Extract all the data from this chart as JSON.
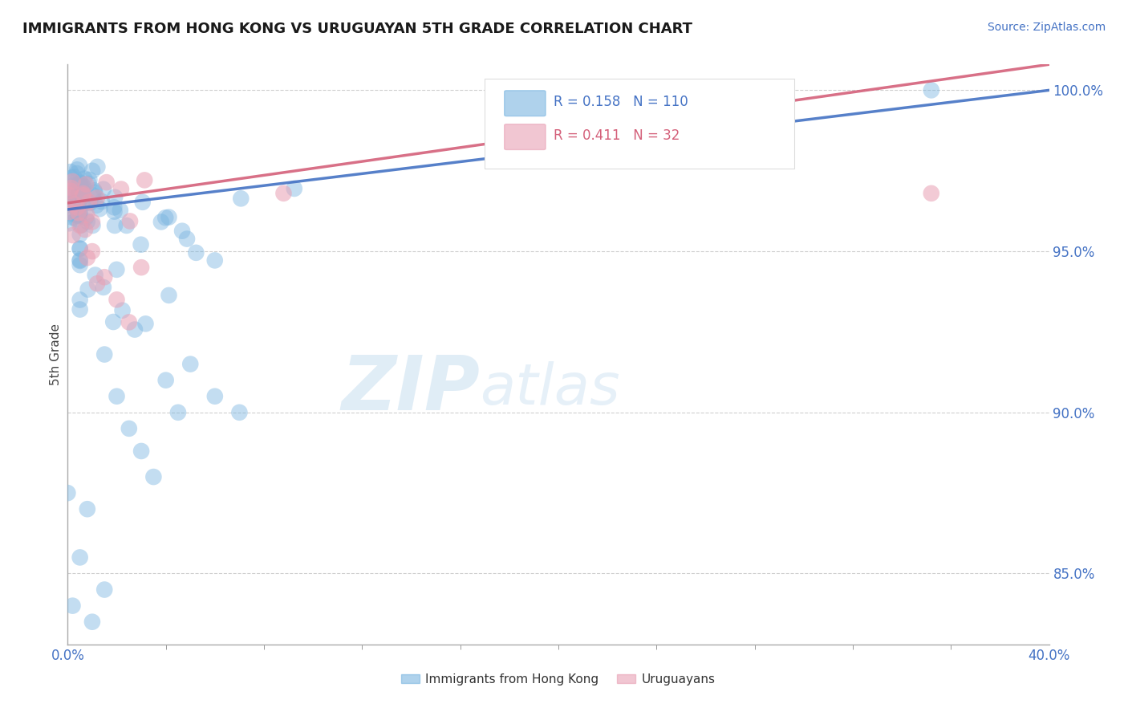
{
  "title": "IMMIGRANTS FROM HONG KONG VS URUGUAYAN 5TH GRADE CORRELATION CHART",
  "source_text": "Source: ZipAtlas.com",
  "ylabel": "5th Grade",
  "xmin": 0.0,
  "xmax": 0.4,
  "ymin": 0.828,
  "ymax": 1.008,
  "yticks": [
    0.85,
    0.9,
    0.95,
    1.0
  ],
  "ytick_labels": [
    "85.0%",
    "90.0%",
    "95.0%",
    "100.0%"
  ],
  "blue_R": 0.158,
  "blue_N": 110,
  "pink_R": 0.411,
  "pink_N": 32,
  "blue_color": "#7ab5e0",
  "pink_color": "#e8a0b4",
  "blue_line_color": "#4472c4",
  "pink_line_color": "#d4607a",
  "legend_label_blue": "Immigrants from Hong Kong",
  "legend_label_pink": "Uruguayans",
  "watermark_ZIP": "ZIP",
  "watermark_atlas": "atlas",
  "background_color": "#ffffff",
  "blue_line_y0": 0.963,
  "blue_line_y1": 1.0,
  "pink_line_y0": 0.965,
  "pink_line_y1": 1.008
}
